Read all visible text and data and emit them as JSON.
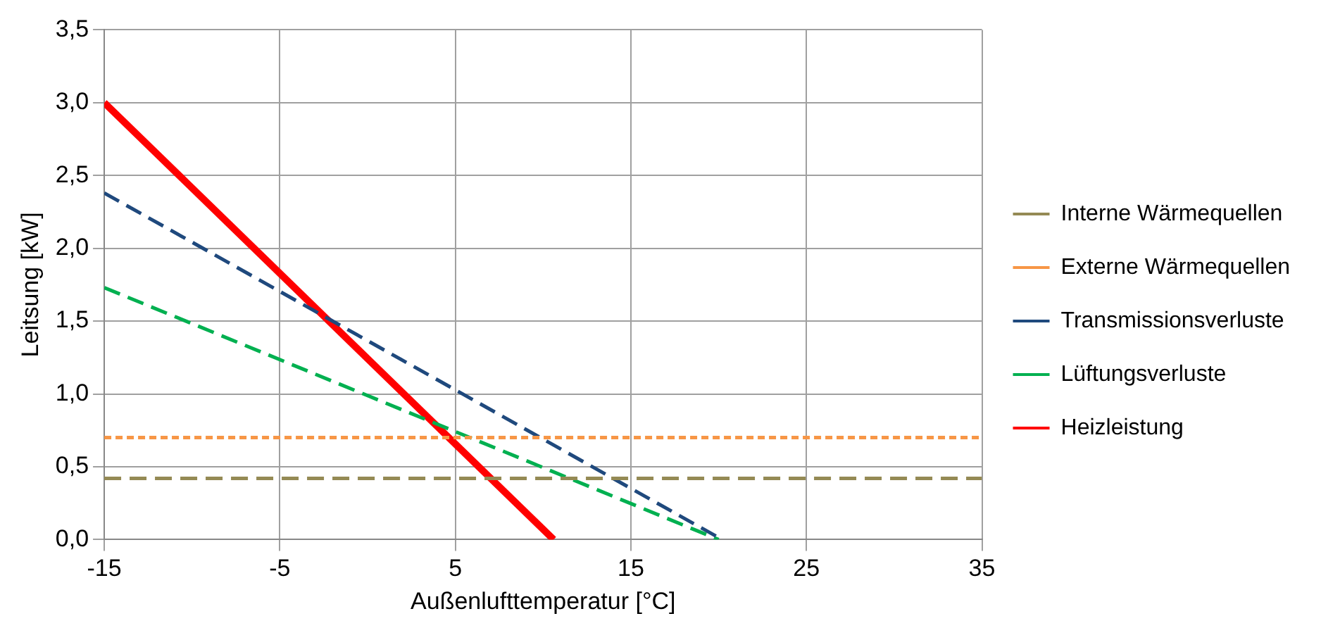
{
  "chart_data": {
    "type": "line",
    "xlabel": "Außenlufttemperatur [°C]",
    "ylabel": "Leitsung [kW]",
    "xlim": [
      -15,
      35
    ],
    "xticks": [
      -15,
      -5,
      5,
      15,
      25,
      35
    ],
    "ylim": [
      0,
      3.5
    ],
    "yticks": [
      {
        "value": 0,
        "label": "0,0"
      },
      {
        "value": 0.5,
        "label": "0,5"
      },
      {
        "value": 1,
        "label": "1,0"
      },
      {
        "value": 1.5,
        "label": "1,5"
      },
      {
        "value": 2,
        "label": "2,0"
      },
      {
        "value": 2.5,
        "label": "2,5"
      },
      {
        "value": 3,
        "label": "3,0"
      },
      {
        "value": 3.5,
        "label": "3,5"
      }
    ],
    "grid": true,
    "legend": "right",
    "marker": "none",
    "series": [
      {
        "name": "Interne Wärmequellen",
        "color": "#948a54",
        "line_style": "dashed",
        "x": [
          -15,
          35
        ],
        "values": [
          0.42,
          0.42
        ]
      },
      {
        "name": "Externe Wärmequellen",
        "color": "#f79646",
        "line_style": "dotted",
        "x": [
          -15,
          35
        ],
        "values": [
          0.7,
          0.7
        ]
      },
      {
        "name": "Transmissionsverluste",
        "color": "#1f497d",
        "line_style": "dashed",
        "x": [
          -15,
          20.2
        ],
        "values": [
          2.38,
          0
        ]
      },
      {
        "name": "Lüftungsverluste",
        "color": "#00b050",
        "line_style": "dashed",
        "x": [
          -15,
          20
        ],
        "values": [
          1.73,
          0
        ]
      },
      {
        "name": "Heizleistung",
        "color": "#ff0000",
        "line_style": "solid",
        "x": [
          -15,
          10.6
        ],
        "values": [
          3.0,
          0
        ]
      }
    ]
  }
}
